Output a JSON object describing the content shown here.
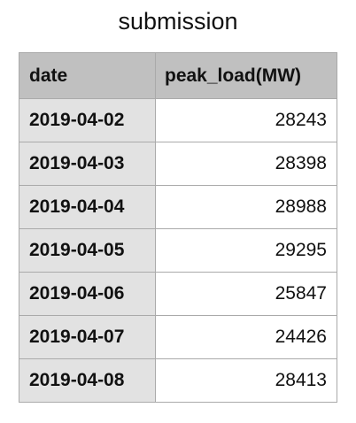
{
  "chart_data": {
    "type": "table",
    "title": "submission",
    "columns": [
      "date",
      "peak_load(MW)"
    ],
    "rows": [
      [
        "2019-04-02",
        "28243"
      ],
      [
        "2019-04-03",
        "28398"
      ],
      [
        "2019-04-04",
        "28988"
      ],
      [
        "2019-04-05",
        "29295"
      ],
      [
        "2019-04-06",
        "25847"
      ],
      [
        "2019-04-07",
        "24426"
      ],
      [
        "2019-04-08",
        "28413"
      ]
    ]
  },
  "colors": {
    "header_bg": "#c0c0c0",
    "row_label_bg": "#e2e2e2",
    "border": "#aaaaaa"
  }
}
